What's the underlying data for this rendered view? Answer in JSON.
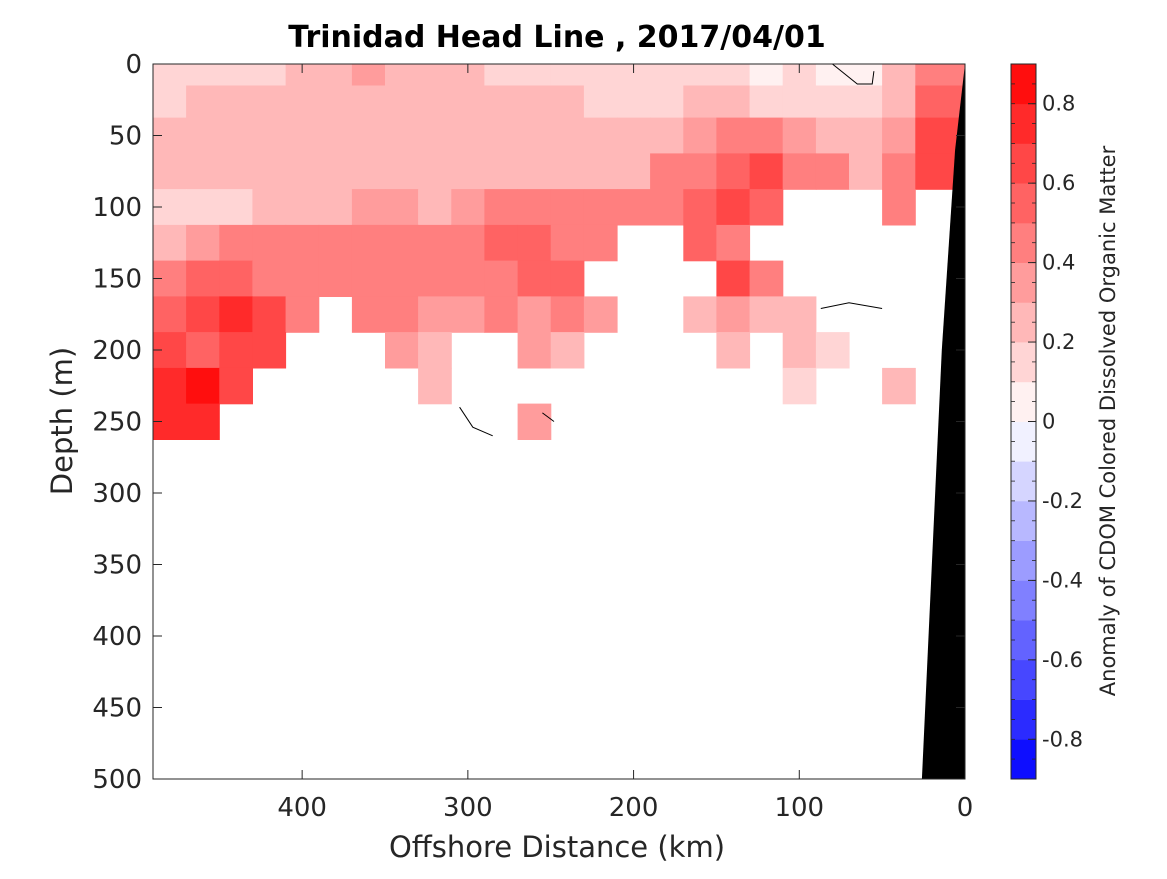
{
  "chart_data": {
    "type": "heatmap",
    "title": "Trinidad Head Line , 2017/04/01",
    "xlabel": "Offshore Distance (km)",
    "ylabel": "Depth (m)",
    "colorbar_label": "Anomaly of CDOM Colored Dissolved Organic Matter",
    "xlim": [
      490,
      0
    ],
    "ylim": [
      500,
      0
    ],
    "x_ticks": [
      400,
      300,
      200,
      100,
      0
    ],
    "y_ticks": [
      0,
      50,
      100,
      150,
      200,
      250,
      300,
      350,
      400,
      450,
      500
    ],
    "colorbar_range": [
      -0.9,
      0.9
    ],
    "colorbar_ticks": [
      0.8,
      0.6,
      0.4,
      0.2,
      0,
      -0.2,
      -0.4,
      -0.6,
      -0.8
    ],
    "colormap": {
      "negative": "#0000ff",
      "zero": "#ffffff",
      "positive": "#ff0000"
    },
    "grid": false,
    "distance_km": [
      480,
      460,
      440,
      420,
      400,
      380,
      360,
      340,
      320,
      300,
      280,
      260,
      240,
      220,
      200,
      180,
      160,
      140,
      120,
      100,
      80,
      60,
      40,
      20
    ],
    "depth_m": [
      5,
      25,
      50,
      75,
      100,
      125,
      150,
      175,
      200,
      225,
      250
    ],
    "anomaly": [
      [
        0.15,
        0.15,
        0.1,
        0.1,
        0.2,
        0.2,
        0.35,
        0.25,
        0.2,
        0.2,
        0.15,
        0.1,
        0.15,
        0.15,
        0.1,
        0.1,
        0.15,
        0.1,
        0.05,
        0.1,
        0.0,
        0.0,
        0.25,
        0.45
      ],
      [
        0.15,
        0.2,
        0.2,
        0.2,
        0.25,
        0.25,
        0.3,
        0.25,
        0.25,
        0.2,
        0.2,
        0.2,
        0.2,
        0.15,
        0.15,
        0.15,
        0.2,
        0.2,
        0.15,
        0.15,
        0.1,
        0.1,
        0.2,
        0.55
      ],
      [
        0.2,
        0.2,
        0.2,
        0.25,
        0.25,
        0.25,
        0.3,
        0.25,
        0.25,
        0.25,
        0.25,
        0.25,
        0.25,
        0.25,
        0.25,
        0.3,
        0.35,
        0.4,
        0.45,
        0.35,
        0.3,
        0.25,
        0.35,
        0.6
      ],
      [
        0.25,
        0.2,
        0.25,
        0.3,
        0.25,
        0.25,
        0.3,
        0.3,
        0.25,
        0.25,
        0.3,
        0.3,
        0.3,
        0.3,
        0.3,
        0.4,
        0.45,
        0.55,
        0.6,
        0.5,
        0.4,
        0.3,
        0.4,
        0.65
      ],
      [
        0.15,
        0.1,
        0.15,
        0.3,
        0.3,
        0.3,
        0.35,
        0.35,
        0.3,
        0.35,
        0.4,
        0.4,
        0.45,
        0.45,
        0.45,
        0.5,
        0.55,
        0.6,
        0.55,
        null,
        null,
        null,
        0.45,
        null
      ],
      [
        0.3,
        0.35,
        0.4,
        0.45,
        0.4,
        0.4,
        0.45,
        0.45,
        0.45,
        0.5,
        0.55,
        0.55,
        0.5,
        0.5,
        null,
        null,
        0.55,
        0.5,
        null,
        null,
        null,
        null,
        null,
        null
      ],
      [
        0.5,
        0.55,
        0.55,
        0.5,
        0.45,
        0.4,
        0.4,
        0.45,
        0.45,
        0.45,
        0.5,
        0.55,
        0.55,
        null,
        null,
        null,
        null,
        0.6,
        0.4,
        null,
        null,
        null,
        null,
        null
      ],
      [
        0.55,
        0.65,
        0.75,
        0.6,
        0.5,
        null,
        0.4,
        0.4,
        0.35,
        0.35,
        0.4,
        0.35,
        0.4,
        0.35,
        null,
        null,
        0.3,
        0.35,
        0.3,
        0.2,
        null,
        null,
        null,
        null
      ],
      [
        0.6,
        0.55,
        0.6,
        0.65,
        null,
        null,
        null,
        0.35,
        0.3,
        null,
        null,
        0.35,
        0.3,
        null,
        null,
        null,
        null,
        0.3,
        null,
        0.25,
        0.1,
        null,
        null,
        null
      ],
      [
        0.7,
        0.8,
        0.65,
        null,
        null,
        null,
        null,
        null,
        0.3,
        null,
        null,
        null,
        null,
        null,
        null,
        null,
        null,
        null,
        null,
        0.1,
        null,
        null,
        0.2,
        null
      ],
      [
        0.7,
        0.75,
        null,
        null,
        null,
        null,
        null,
        null,
        null,
        null,
        null,
        0.35,
        null,
        null,
        null,
        null,
        null,
        null,
        null,
        null,
        null,
        null,
        null,
        null
      ]
    ]
  }
}
